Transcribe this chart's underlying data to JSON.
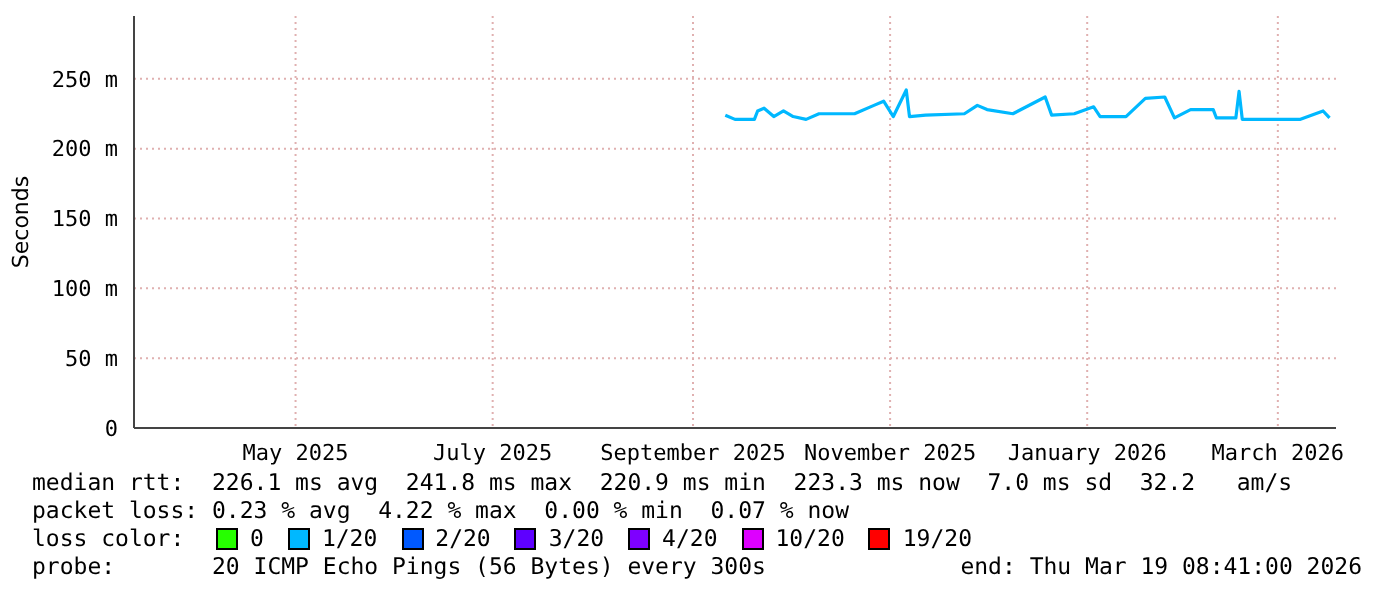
{
  "chart_data": {
    "type": "line",
    "ylabel": "Seconds",
    "x": [
      "2025-09-11",
      "2025-09-14",
      "2025-09-20",
      "2025-09-21",
      "2025-09-23",
      "2025-09-26",
      "2025-09-29",
      "2025-10-02",
      "2025-10-06",
      "2025-10-10",
      "2025-10-21",
      "2025-10-27",
      "2025-10-30",
      "2025-11-02",
      "2025-11-06",
      "2025-11-07",
      "2025-11-12",
      "2025-11-24",
      "2025-11-28",
      "2025-12-01",
      "2025-12-09",
      "2025-12-19",
      "2025-12-21",
      "2025-12-28",
      "2026-01-03",
      "2026-01-05",
      "2026-01-13",
      "2026-01-19",
      "2026-01-25",
      "2026-01-28",
      "2026-02-02",
      "2026-02-09",
      "2026-02-10",
      "2026-02-16",
      "2026-02-17",
      "2026-02-18",
      "2026-03-08",
      "2026-03-15",
      "2026-03-17"
    ],
    "series": [
      {
        "color": "#00b8ff",
        "values": [
          224,
          221,
          221,
          227,
          229,
          223,
          227,
          223,
          221,
          225,
          225,
          231,
          234,
          223,
          242,
          223,
          224,
          225,
          231,
          228,
          225,
          237,
          224,
          225,
          230,
          223,
          223,
          236,
          237,
          222,
          228,
          228,
          222,
          222,
          241,
          221,
          221,
          227,
          222
        ]
      }
    ],
    "xlim": [
      "2025-03-12",
      "2026-03-19"
    ],
    "xticks": [
      {
        "value": "2025-05-01",
        "label": "May 2025"
      },
      {
        "value": "2025-07-01",
        "label": "July 2025"
      },
      {
        "value": "2025-09-01",
        "label": "September 2025"
      },
      {
        "value": "2025-11-01",
        "label": "November 2025"
      },
      {
        "value": "2026-01-01",
        "label": "January 2026"
      },
      {
        "value": "2026-03-01",
        "label": "March 2026"
      }
    ],
    "ylim": [
      0,
      295
    ],
    "yticks": [
      0,
      {
        "value": 50,
        "label": "50 m"
      },
      {
        "value": 100,
        "label": "100 m"
      },
      {
        "value": 150,
        "label": "150 m"
      },
      {
        "value": 200,
        "label": "200 m"
      },
      {
        "value": 250,
        "label": "250 m"
      }
    ],
    "grid": true,
    "legend": false,
    "marker": "none",
    "line_style": "solid",
    "annotations": [
      "median rtt:  226.1 ms avg  241.8 ms max  220.9 ms min  223.3 ms now  7.0 ms sd  32.2   am/s",
      "packet loss: 0.23 % avg  4.22 % max  0.00 % min  0.07 % now",
      "loss color:",
      "0",
      "1/20",
      "2/20",
      "3/20",
      "4/20",
      "10/20",
      "19/20",
      "probe:       20 ICMP Echo Pings (56 Bytes) every 300s",
      "end: Thu Mar 19 08:41:00 2026"
    ]
  }
}
